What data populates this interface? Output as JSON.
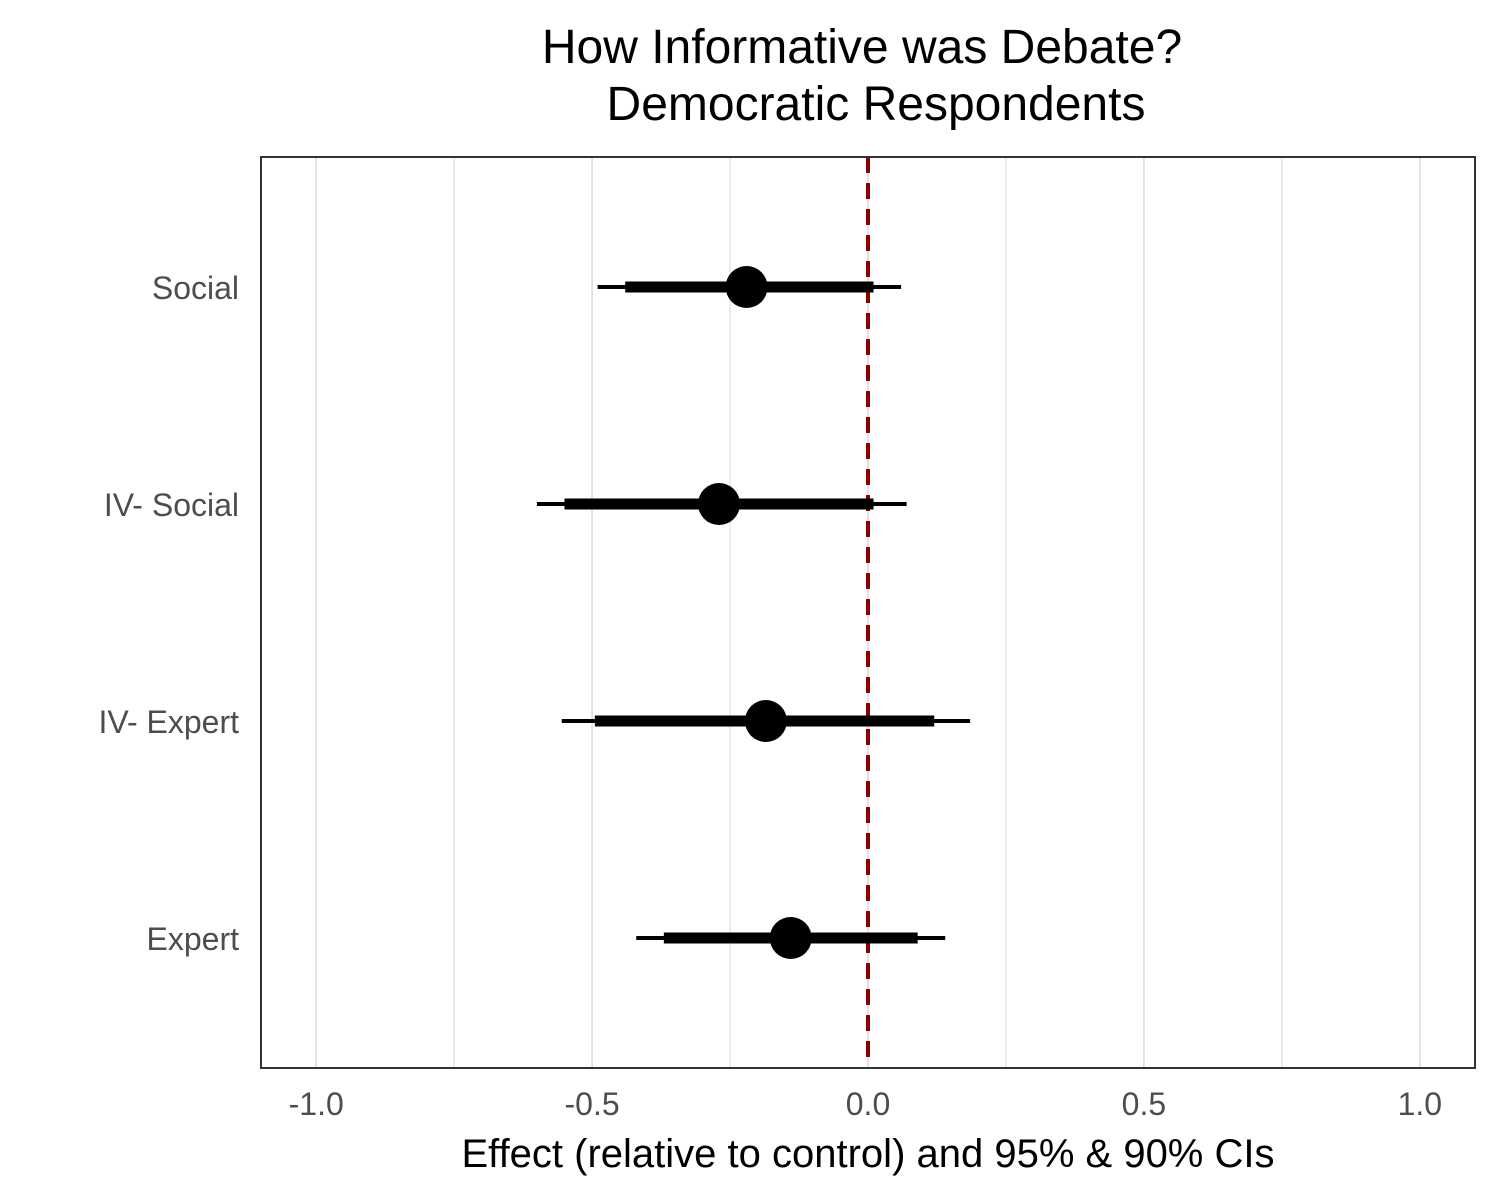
{
  "chart_data": {
    "type": "forest",
    "title": [
      "How Informative was Debate?",
      "Democratic Respondents"
    ],
    "xlabel": "Effect (relative to control) and 95% & 90% CIs",
    "ylabel": "",
    "xlim": [
      -1.1,
      1.1
    ],
    "x_ticks": [
      -1.0,
      -0.5,
      0.0,
      0.5,
      1.0
    ],
    "x_tick_labels": [
      "-1.0",
      "-0.5",
      "0.0",
      "0.5",
      "1.0"
    ],
    "x_minor_gridlines": [
      -0.75,
      -0.25,
      0.25,
      0.75
    ],
    "reference_line": {
      "x": 0.0,
      "color": "#8b0000",
      "style": "dashed"
    },
    "grid": true,
    "categories": [
      "Social",
      "IV- Social",
      "IV- Expert",
      "Expert"
    ],
    "estimates": [
      {
        "label": "Social",
        "estimate": -0.22,
        "ci95": [
          -0.49,
          0.06
        ],
        "ci90": [
          -0.44,
          0.01
        ]
      },
      {
        "label": "IV- Social",
        "estimate": -0.27,
        "ci95": [
          -0.6,
          0.07
        ],
        "ci90": [
          -0.55,
          0.01
        ]
      },
      {
        "label": "IV- Expert",
        "estimate": -0.185,
        "ci95": [
          -0.555,
          0.185
        ],
        "ci90": [
          -0.495,
          0.12
        ]
      },
      {
        "label": "Expert",
        "estimate": -0.14,
        "ci95": [
          -0.42,
          0.14
        ],
        "ci90": [
          -0.37,
          0.09
        ]
      }
    ],
    "colors": {
      "points": "#000000",
      "gridlines": "#d9d9d9",
      "panel_border": "#333333"
    }
  }
}
